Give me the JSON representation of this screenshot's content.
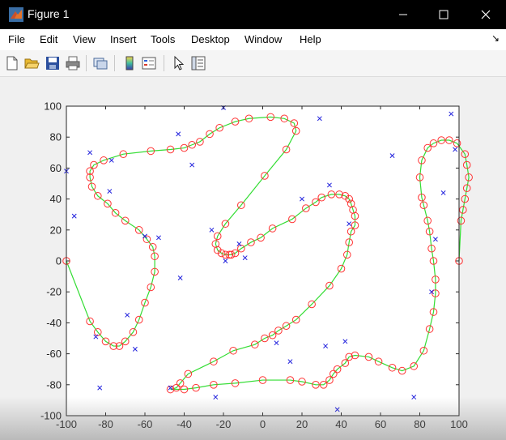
{
  "window": {
    "title": "Figure 1",
    "minimize_icon": "minimize-icon",
    "maximize_icon": "maximize-icon",
    "close_icon": "close-icon"
  },
  "menu": {
    "items": [
      "File",
      "Edit",
      "View",
      "Insert",
      "Tools",
      "Desktop",
      "Window",
      "Help"
    ]
  },
  "toolbar": {
    "icons": [
      "new-figure-icon",
      "open-file-icon",
      "save-icon",
      "print-icon",
      "link-icon",
      "colorbar-icon",
      "legend-icon",
      "pointer-icon",
      "property-editor-icon"
    ]
  },
  "colors": {
    "titlebar": "#000000",
    "route_line": "#33dd33",
    "route_marker": "#ff3333",
    "point_marker": "#2222dd"
  },
  "chart_data": {
    "type": "scatter",
    "title": "",
    "xlabel": "",
    "ylabel": "",
    "xlim": [
      -100,
      100
    ],
    "ylim": [
      -100,
      100
    ],
    "xticks": [
      -100,
      -80,
      -60,
      -40,
      -20,
      0,
      20,
      40,
      60,
      80,
      100
    ],
    "yticks": [
      -100,
      -80,
      -60,
      -40,
      -20,
      0,
      20,
      40,
      60,
      80,
      100
    ],
    "grid": false,
    "series": [
      {
        "style": "line-circle",
        "points": [
          [
            -100,
            0
          ],
          [
            -88,
            -39
          ],
          [
            -84,
            -46
          ],
          [
            -80,
            -52
          ],
          [
            -76,
            -55
          ],
          [
            -73,
            -55
          ],
          [
            -70,
            -52
          ],
          [
            -66,
            -46
          ],
          [
            -63,
            -38
          ],
          [
            -60,
            -27
          ],
          [
            -57,
            -17
          ],
          [
            -55,
            -7
          ],
          [
            -55,
            3
          ],
          [
            -56,
            9
          ],
          [
            -59,
            14
          ],
          [
            -63,
            20
          ],
          [
            -70,
            26
          ],
          [
            -75,
            31
          ],
          [
            -79,
            37
          ],
          [
            -84,
            42
          ],
          [
            -87,
            48
          ],
          [
            -88,
            54
          ],
          [
            -88,
            58
          ],
          [
            -86,
            62
          ],
          [
            -81,
            65
          ],
          [
            -71,
            69
          ],
          [
            -57,
            71
          ],
          [
            -47,
            72
          ],
          [
            -40,
            73
          ],
          [
            -36,
            75
          ],
          [
            -32,
            77
          ],
          [
            -27,
            82
          ],
          [
            -22,
            86
          ],
          [
            -14,
            90
          ],
          [
            -7,
            92
          ],
          [
            4,
            93
          ],
          [
            11,
            92
          ],
          [
            16,
            89
          ],
          [
            17,
            84
          ],
          [
            12,
            72
          ],
          [
            1,
            55
          ],
          [
            -11,
            36
          ],
          [
            -19,
            24
          ],
          [
            -23,
            16
          ],
          [
            -24,
            11
          ],
          [
            -23,
            7
          ],
          [
            -21,
            5
          ],
          [
            -19,
            4
          ],
          [
            -17,
            4
          ],
          [
            -16,
            4
          ],
          [
            -14,
            5
          ],
          [
            -11,
            8
          ],
          [
            -6,
            12
          ],
          [
            -1,
            15
          ],
          [
            5,
            21
          ],
          [
            15,
            27
          ],
          [
            22,
            34
          ],
          [
            27,
            38
          ],
          [
            30,
            41
          ],
          [
            35,
            43
          ],
          [
            39,
            43
          ],
          [
            42,
            42
          ],
          [
            44,
            40
          ],
          [
            45,
            37
          ],
          [
            46,
            33
          ],
          [
            47,
            29
          ],
          [
            47,
            23
          ],
          [
            45,
            19
          ],
          [
            44,
            12
          ],
          [
            43,
            4
          ],
          [
            40,
            -5
          ],
          [
            34,
            -16
          ],
          [
            25,
            -28
          ],
          [
            17,
            -38
          ],
          [
            12,
            -42
          ],
          [
            8,
            -45
          ],
          [
            5,
            -48
          ],
          [
            1,
            -50
          ],
          [
            -4,
            -54
          ],
          [
            -15,
            -58
          ],
          [
            -25,
            -65
          ],
          [
            -38,
            -73
          ],
          [
            -42,
            -79
          ],
          [
            -44,
            -82
          ],
          [
            -47,
            -83
          ],
          [
            -40,
            -83
          ],
          [
            -34,
            -82
          ],
          [
            -25,
            -80
          ],
          [
            -14,
            -79
          ],
          [
            0,
            -77
          ],
          [
            14,
            -77
          ],
          [
            20,
            -78
          ],
          [
            27,
            -80
          ],
          [
            31,
            -80
          ],
          [
            34,
            -77
          ],
          [
            36,
            -73
          ],
          [
            38,
            -70
          ],
          [
            42,
            -66
          ],
          [
            44,
            -62
          ],
          [
            47,
            -61
          ],
          [
            54,
            -62
          ],
          [
            59,
            -65
          ],
          [
            66,
            -69
          ],
          [
            71,
            -71
          ],
          [
            77,
            -68
          ],
          [
            82,
            -58
          ],
          [
            85,
            -44
          ],
          [
            87,
            -33
          ],
          [
            88,
            -21
          ],
          [
            88,
            -12
          ],
          [
            87,
            0
          ],
          [
            86,
            8
          ],
          [
            85,
            19
          ],
          [
            84,
            26
          ],
          [
            82,
            36
          ],
          [
            81,
            41
          ],
          [
            80,
            54
          ],
          [
            81,
            65
          ],
          [
            84,
            73
          ],
          [
            87,
            76
          ],
          [
            91,
            78
          ],
          [
            95,
            78
          ],
          [
            99,
            76
          ],
          [
            103,
            69
          ],
          [
            104,
            62
          ],
          [
            105,
            54
          ],
          [
            104,
            47
          ],
          [
            103,
            40
          ],
          [
            102,
            33
          ],
          [
            101,
            26
          ],
          [
            100,
            0
          ]
        ]
      },
      {
        "style": "x-marker",
        "points": [
          [
            -100,
            58
          ],
          [
            -96,
            29
          ],
          [
            -88,
            70
          ],
          [
            -85,
            -49
          ],
          [
            -83,
            -82
          ],
          [
            -78,
            45
          ],
          [
            -77,
            65
          ],
          [
            -69,
            -35
          ],
          [
            -65,
            -57
          ],
          [
            -60,
            16
          ],
          [
            -53,
            15
          ],
          [
            -47,
            -82
          ],
          [
            -43,
            82
          ],
          [
            -42,
            -11
          ],
          [
            -36,
            62
          ],
          [
            -26,
            20
          ],
          [
            -24,
            -88
          ],
          [
            -20,
            99
          ],
          [
            -19,
            0
          ],
          [
            -12,
            11
          ],
          [
            -9,
            2
          ],
          [
            7,
            -53
          ],
          [
            14,
            -65
          ],
          [
            20,
            40
          ],
          [
            29,
            92
          ],
          [
            32,
            -55
          ],
          [
            34,
            49
          ],
          [
            38,
            -96
          ],
          [
            42,
            -52
          ],
          [
            44,
            24
          ],
          [
            66,
            68
          ],
          [
            77,
            -88
          ],
          [
            86,
            -20
          ],
          [
            88,
            14
          ],
          [
            92,
            44
          ],
          [
            96,
            95
          ],
          [
            98,
            72
          ]
        ]
      }
    ]
  }
}
